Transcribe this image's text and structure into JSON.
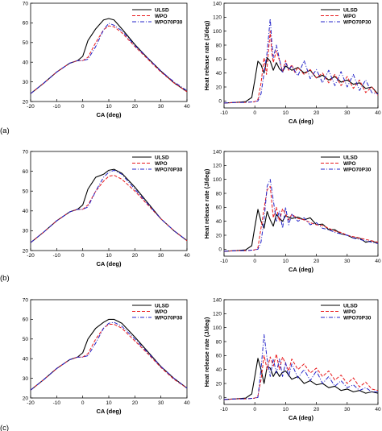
{
  "row_labels": [
    "(a)",
    "(b)",
    "(c)"
  ],
  "legend_labels": [
    "ULSD",
    "WPO",
    "WPO70P30"
  ],
  "colors": {
    "ULSD": "#000000",
    "WPO": "#e8191c",
    "WPO70P30": "#2323c8"
  },
  "chart_data": [
    {
      "type": "line",
      "row": "(a)",
      "xlabel": "CA (deg)",
      "ylabel": "",
      "xlim": [
        -20,
        40
      ],
      "ylim": [
        20,
        70
      ],
      "xticks": [
        -20,
        -10,
        0,
        10,
        20,
        30,
        40
      ],
      "yticks": [
        20,
        30,
        40,
        50,
        60,
        70
      ],
      "series": [
        {
          "name": "ULSD",
          "style": "solid",
          "x": [
            -20,
            -15,
            -10,
            -5,
            -2,
            0,
            2,
            5,
            8,
            10,
            12,
            15,
            20,
            25,
            30,
            35,
            40
          ],
          "y": [
            24,
            29.3,
            35,
            39.5,
            40.8,
            43,
            51,
            57,
            61.5,
            62.2,
            61.5,
            57,
            49,
            42,
            35.5,
            29.5,
            25
          ]
        },
        {
          "name": "WPO",
          "style": "dashed",
          "x": [
            -20,
            -15,
            -10,
            -5,
            -2,
            0,
            2,
            5,
            8,
            10,
            12,
            15,
            20,
            25,
            30,
            35,
            40
          ],
          "y": [
            24,
            29.3,
            35,
            39.5,
            40.8,
            40.8,
            42.5,
            50,
            56.5,
            58.5,
            58,
            55,
            48,
            41.5,
            35,
            29.5,
            25
          ]
        },
        {
          "name": "WPO70P30",
          "style": "dashdot",
          "x": [
            -20,
            -15,
            -10,
            -5,
            -2,
            0,
            2,
            5,
            8,
            10,
            12,
            15,
            20,
            25,
            30,
            35,
            40
          ],
          "y": [
            24,
            29.3,
            35,
            39.5,
            40.8,
            40.8,
            41.5,
            48,
            56.5,
            59.8,
            58.8,
            56,
            48.5,
            42,
            35.5,
            30,
            25.5
          ]
        }
      ]
    },
    {
      "type": "line",
      "row": "(a)",
      "xlabel": "CA (deg)",
      "ylabel": "Heat release rate (J/deg)",
      "xlim": [
        -10,
        40
      ],
      "ylim": [
        -10,
        140
      ],
      "xticks": [
        -10,
        0,
        10,
        20,
        30,
        40
      ],
      "yticks": [
        0,
        20,
        40,
        60,
        80,
        100,
        120,
        140
      ],
      "series": [
        {
          "name": "ULSD",
          "style": "solid",
          "x": [
            -10,
            -6,
            -3,
            -1,
            0,
            1,
            2,
            3,
            4,
            5,
            6,
            7,
            8,
            9,
            10,
            12,
            14,
            16,
            18,
            20,
            22,
            24,
            26,
            28,
            30,
            32,
            34,
            36,
            38,
            40
          ],
          "y": [
            -3,
            -2,
            -1,
            5,
            30,
            57,
            52,
            40,
            62,
            57,
            44,
            55,
            46,
            42,
            50,
            44,
            48,
            40,
            44,
            33,
            37,
            30,
            35,
            27,
            30,
            24,
            26,
            18,
            20,
            10
          ]
        },
        {
          "name": "WPO",
          "style": "dashed",
          "x": [
            -10,
            -6,
            -3,
            0,
            1,
            2,
            3,
            3.8,
            4.5,
            5,
            5.5,
            6,
            7,
            8,
            9,
            10,
            11,
            12,
            13,
            14,
            16,
            18,
            20,
            22,
            24,
            26,
            28,
            30,
            32,
            34,
            36,
            38,
            40
          ],
          "y": [
            -3,
            -2,
            -2,
            -1,
            2,
            25,
            62,
            38,
            75,
            100,
            70,
            55,
            72,
            58,
            42,
            58,
            44,
            52,
            41,
            48,
            38,
            45,
            33,
            40,
            26,
            38,
            22,
            35,
            18,
            30,
            12,
            20,
            8
          ]
        },
        {
          "name": "WPO70P30",
          "style": "dashdot",
          "x": [
            -10,
            -6,
            -3,
            0,
            1,
            2,
            3,
            4,
            5,
            5.5,
            6,
            7,
            8,
            9,
            10,
            11,
            12,
            14,
            16,
            18,
            20,
            22,
            24,
            26,
            28,
            30,
            32,
            34,
            36,
            38,
            40
          ],
          "y": [
            -3,
            -2,
            -2,
            -1,
            0,
            10,
            40,
            70,
            118,
            85,
            62,
            80,
            60,
            40,
            55,
            45,
            50,
            36,
            58,
            32,
            45,
            26,
            44,
            22,
            42,
            20,
            38,
            15,
            30,
            12,
            10
          ]
        }
      ]
    },
    {
      "type": "line",
      "row": "(b)",
      "xlabel": "CA (deg)",
      "ylabel": "",
      "xlim": [
        -20,
        40
      ],
      "ylim": [
        20,
        70
      ],
      "xticks": [
        -20,
        -10,
        0,
        10,
        20,
        30,
        40
      ],
      "yticks": [
        20,
        30,
        40,
        50,
        60,
        70
      ],
      "series": [
        {
          "name": "ULSD",
          "style": "solid",
          "x": [
            -20,
            -15,
            -10,
            -5,
            -2,
            0,
            2,
            5,
            8,
            10,
            12,
            15,
            20,
            25,
            30,
            35,
            40
          ],
          "y": [
            24,
            29.3,
            35,
            39.5,
            40.8,
            43,
            51,
            57,
            58.5,
            60.5,
            61,
            59,
            52,
            44,
            36,
            30,
            25
          ]
        },
        {
          "name": "WPO",
          "style": "dashed",
          "x": [
            -20,
            -15,
            -10,
            -5,
            -2,
            0,
            2,
            5,
            8,
            10,
            12,
            15,
            20,
            25,
            30,
            35,
            40
          ],
          "y": [
            24,
            29.3,
            35,
            39.5,
            40.8,
            40.8,
            43,
            50,
            55,
            57.5,
            58,
            56,
            50,
            43,
            36,
            30,
            25
          ]
        },
        {
          "name": "WPO70P30",
          "style": "dashdot",
          "x": [
            -20,
            -15,
            -10,
            -5,
            -2,
            0,
            2,
            5,
            8,
            10,
            12,
            15,
            20,
            25,
            30,
            35,
            40
          ],
          "y": [
            24,
            29.3,
            35,
            39.5,
            40.8,
            40.8,
            42,
            50,
            57,
            59.5,
            60.5,
            58.5,
            51,
            43.5,
            36,
            30,
            25
          ]
        }
      ]
    },
    {
      "type": "line",
      "row": "(b)",
      "xlabel": "CA (deg)",
      "ylabel": "Heat release rate (J/deg)",
      "xlim": [
        -10,
        40
      ],
      "ylim": [
        -10,
        140
      ],
      "xticks": [
        -10,
        0,
        10,
        20,
        30,
        40
      ],
      "yticks": [
        0,
        20,
        40,
        60,
        80,
        100,
        120,
        140
      ],
      "series": [
        {
          "name": "ULSD",
          "style": "solid",
          "x": [
            -10,
            -6,
            -3,
            -1,
            0,
            1,
            2,
            3,
            4,
            5,
            6,
            7,
            8,
            9,
            10,
            12,
            14,
            16,
            18,
            20,
            22,
            24,
            26,
            28,
            30,
            32,
            34,
            36,
            38,
            40
          ],
          "y": [
            -3,
            -2,
            -1,
            5,
            32,
            57,
            40,
            30,
            54,
            42,
            33,
            50,
            44,
            40,
            48,
            44,
            46,
            42,
            45,
            35,
            36,
            28,
            28,
            22,
            20,
            16,
            16,
            10,
            12,
            8
          ]
        },
        {
          "name": "WPO",
          "style": "dashed",
          "x": [
            -10,
            -6,
            -3,
            0,
            1,
            2,
            3,
            4,
            5,
            6,
            7,
            8,
            9,
            10,
            11,
            12,
            14,
            16,
            18,
            20,
            22,
            24,
            26,
            28,
            30,
            32,
            34,
            36,
            38,
            40
          ],
          "y": [
            -3,
            -2,
            -2,
            -1,
            2,
            30,
            58,
            85,
            90,
            45,
            60,
            40,
            58,
            50,
            42,
            50,
            44,
            42,
            38,
            35,
            34,
            30,
            26,
            24,
            20,
            18,
            16,
            14,
            12,
            10
          ]
        },
        {
          "name": "WPO70P30",
          "style": "dashdot",
          "x": [
            -10,
            -6,
            -3,
            0,
            1,
            2,
            3,
            4,
            5,
            6,
            7,
            8,
            9,
            10,
            11,
            12,
            14,
            16,
            18,
            20,
            22,
            24,
            26,
            28,
            30,
            32,
            34,
            36,
            38,
            40
          ],
          "y": [
            -3,
            -2,
            -2,
            -1,
            0,
            10,
            42,
            90,
            100,
            70,
            40,
            55,
            30,
            60,
            35,
            50,
            40,
            45,
            35,
            38,
            30,
            28,
            24,
            22,
            20,
            16,
            14,
            12,
            10,
            8
          ]
        }
      ]
    },
    {
      "type": "line",
      "row": "(c)",
      "xlabel": "CA (deg)",
      "ylabel": "",
      "xlim": [
        -20,
        40
      ],
      "ylim": [
        20,
        70
      ],
      "xticks": [
        -20,
        -10,
        0,
        10,
        20,
        30,
        40
      ],
      "yticks": [
        20,
        30,
        40,
        50,
        60,
        70
      ],
      "series": [
        {
          "name": "ULSD",
          "style": "solid",
          "x": [
            -20,
            -15,
            -10,
            -5,
            -2,
            0,
            2,
            5,
            8,
            10,
            12,
            15,
            20,
            25,
            30,
            35,
            40
          ],
          "y": [
            24,
            29.3,
            35,
            39.5,
            40.8,
            43,
            50,
            55.5,
            58.5,
            60,
            60,
            58,
            51,
            43.5,
            36,
            30,
            25
          ]
        },
        {
          "name": "WPO",
          "style": "dashed",
          "x": [
            -20,
            -15,
            -10,
            -5,
            -2,
            0,
            2,
            5,
            8,
            10,
            12,
            15,
            20,
            25,
            30,
            35,
            40
          ],
          "y": [
            24,
            29.3,
            35,
            39.5,
            40.8,
            40.8,
            42.5,
            50,
            55.5,
            57.5,
            57.5,
            55.5,
            49,
            42.5,
            35.5,
            29.5,
            25
          ]
        },
        {
          "name": "WPO70P30",
          "style": "dashdot",
          "x": [
            -20,
            -15,
            -10,
            -5,
            -2,
            0,
            2,
            5,
            8,
            10,
            12,
            15,
            20,
            25,
            30,
            35,
            40
          ],
          "y": [
            24,
            29.3,
            35,
            39.5,
            40.8,
            40.8,
            41.5,
            48,
            55.5,
            58,
            58.5,
            56.5,
            50,
            43,
            36,
            30,
            25
          ]
        }
      ]
    },
    {
      "type": "line",
      "row": "(c)",
      "xlabel": "CA (deg)",
      "ylabel": "Heat release rate (J/deg)",
      "xlim": [
        -10,
        40
      ],
      "ylim": [
        -10,
        140
      ],
      "xticks": [
        -10,
        0,
        10,
        20,
        30,
        40
      ],
      "yticks": [
        0,
        20,
        40,
        60,
        80,
        100,
        120,
        140
      ],
      "series": [
        {
          "name": "ULSD",
          "style": "solid",
          "x": [
            -10,
            -6,
            -3,
            -1,
            0,
            1,
            2,
            3,
            4,
            5,
            6,
            7,
            8,
            9,
            10,
            12,
            14,
            16,
            18,
            20,
            22,
            24,
            26,
            28,
            30,
            32,
            34,
            36,
            38,
            40
          ],
          "y": [
            -3,
            -2,
            -1,
            5,
            30,
            56,
            40,
            20,
            44,
            42,
            30,
            38,
            30,
            36,
            38,
            26,
            30,
            20,
            24,
            18,
            20,
            14,
            16,
            10,
            12,
            8,
            10,
            6,
            8,
            6
          ]
        },
        {
          "name": "WPO",
          "style": "dashed",
          "x": [
            -10,
            -6,
            -3,
            0,
            1,
            2,
            3,
            4,
            5,
            6,
            7,
            8,
            9,
            10,
            11,
            12,
            14,
            16,
            18,
            20,
            22,
            24,
            26,
            28,
            30,
            32,
            34,
            36,
            38,
            40
          ],
          "y": [
            -3,
            -2,
            -2,
            -1,
            2,
            25,
            60,
            40,
            58,
            45,
            62,
            40,
            58,
            48,
            38,
            55,
            40,
            48,
            35,
            42,
            30,
            38,
            25,
            32,
            20,
            28,
            15,
            22,
            12,
            10
          ]
        },
        {
          "name": "WPO70P30",
          "style": "dashdot",
          "x": [
            -10,
            -6,
            -3,
            0,
            1,
            2,
            3,
            4,
            5,
            6,
            7,
            8,
            9,
            10,
            11,
            12,
            14,
            16,
            18,
            20,
            22,
            24,
            26,
            28,
            30,
            32,
            34,
            36,
            38,
            40
          ],
          "y": [
            -3,
            -2,
            -2,
            -1,
            0,
            40,
            90,
            55,
            30,
            55,
            35,
            55,
            30,
            50,
            30,
            48,
            28,
            40,
            24,
            38,
            20,
            30,
            16,
            24,
            14,
            18,
            10,
            14,
            8,
            8
          ]
        }
      ]
    }
  ]
}
